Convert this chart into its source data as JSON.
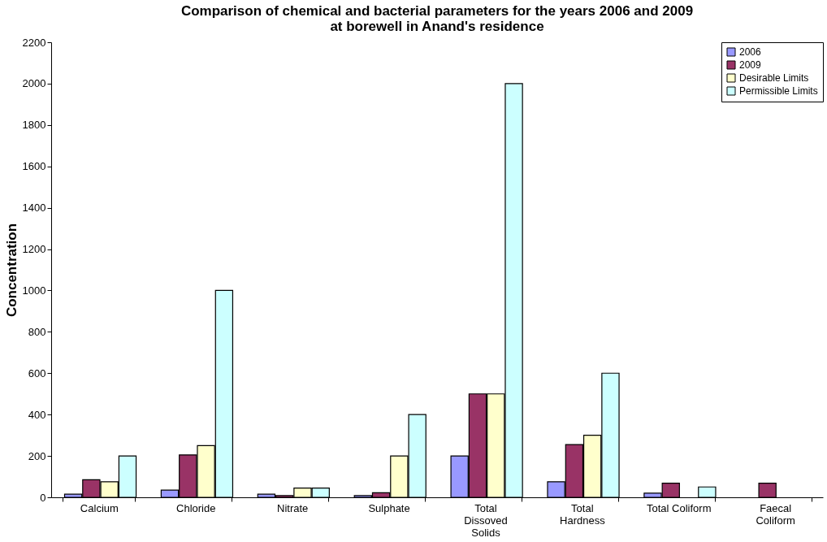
{
  "chart_data": {
    "type": "bar",
    "title": [
      "Comparison of chemical and bacterial parameters for the years 2006 and 2009",
      "at borewell in Anand's residence"
    ],
    "ylabel": "Concentration",
    "categories": [
      "Calcium",
      "Chloride",
      "Nitrate",
      "Sulphate",
      "Total\nDissoved\nSolids",
      "Total\nHardness",
      "Total Coliform",
      "Faecal\nColiform"
    ],
    "series": [
      {
        "name": "2006",
        "color": "#9999ff",
        "values": [
          15,
          35,
          15,
          8,
          200,
          75,
          20,
          null
        ]
      },
      {
        "name": "2009",
        "color": "#993366",
        "values": [
          85,
          205,
          8,
          22,
          500,
          255,
          68,
          68
        ]
      },
      {
        "name": "Desirable Limits",
        "color": "#ffffcc",
        "values": [
          75,
          250,
          45,
          200,
          500,
          300,
          null,
          null
        ]
      },
      {
        "name": "Permissible Limits",
        "color": "#ccffff",
        "values": [
          200,
          1000,
          45,
          400,
          2000,
          600,
          50,
          null
        ]
      }
    ],
    "ylim": [
      0,
      2200
    ],
    "yticks": [
      0,
      200,
      400,
      600,
      800,
      1000,
      1200,
      1400,
      1600,
      1800,
      2000,
      2200
    ],
    "grid": false,
    "legend": "top right"
  }
}
